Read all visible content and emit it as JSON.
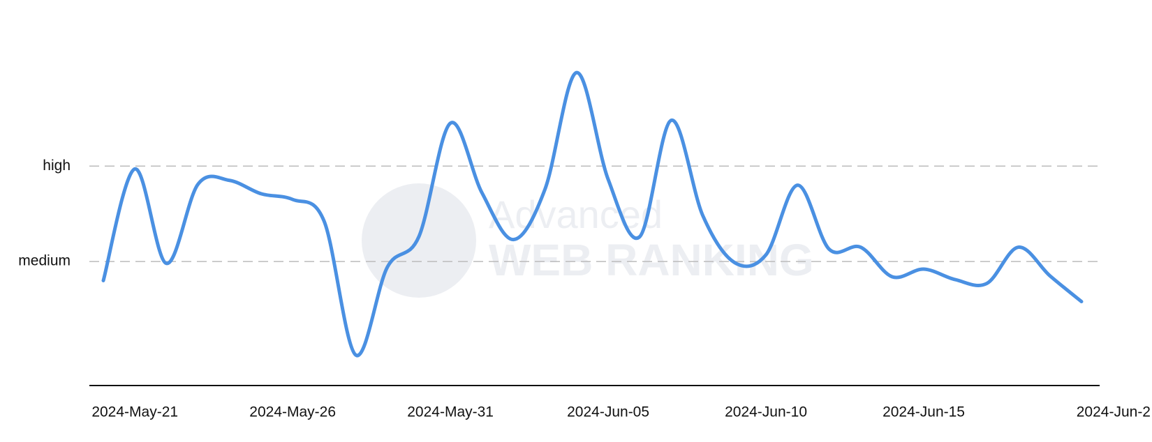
{
  "chart_data": {
    "type": "line",
    "watermark": [
      "Advanced",
      "WEB RANKING"
    ],
    "categories": [
      null,
      "2024-May-21",
      null,
      null,
      null,
      null,
      "2024-May-26",
      null,
      null,
      null,
      null,
      "2024-May-31",
      null,
      null,
      null,
      null,
      "2024-Jun-05",
      null,
      null,
      null,
      null,
      "2024-Jun-10",
      null,
      null,
      null,
      null,
      "2024-Jun-15",
      null,
      null,
      null,
      null,
      "2024-Jun-2"
    ],
    "series": [
      {
        "color": "#4a90e2",
        "values": [
          0.8,
          1.97,
          0.98,
          1.81,
          1.85,
          1.71,
          1.65,
          1.42,
          0.02,
          0.94,
          1.26,
          2.45,
          1.72,
          1.23,
          1.76,
          2.98,
          1.86,
          1.26,
          2.48,
          1.48,
          0.99,
          1.07,
          1.8,
          1.13,
          1.15,
          0.84,
          0.92,
          0.81,
          0.77,
          1.15,
          0.85,
          0.58
        ]
      }
    ],
    "ylim": [
      -0.3,
      3.2
    ],
    "yticks": [
      {
        "value": 1,
        "label": "medium"
      },
      {
        "value": 2,
        "label": "high"
      }
    ],
    "grid": true
  }
}
